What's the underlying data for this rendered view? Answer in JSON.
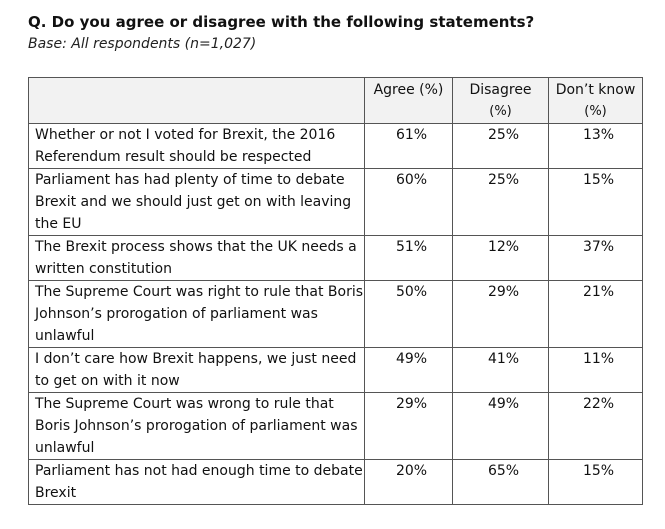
{
  "title": "Q. Do you agree or disagree with the following statements?",
  "base": "Base: All respondents (n=1,027)",
  "columns": {
    "agree": "Agree (%)",
    "disagree": "Disagree",
    "disagree_sub": "(%)",
    "dontknow": "Don’t know",
    "dontknow_sub": "(%)"
  },
  "rows": [
    {
      "statement": "Whether or not I voted for Brexit, the 2016 Referendum result should be respected",
      "agree": "61%",
      "disagree": "25%",
      "dontknow": "13%"
    },
    {
      "statement": "Parliament has had plenty of time to debate Brexit and we should just get on with leaving the EU",
      "agree": "60%",
      "disagree": "25%",
      "dontknow": "15%"
    },
    {
      "statement": "The Brexit process shows that the UK needs a written constitution",
      "agree": "51%",
      "disagree": "12%",
      "dontknow": "37%"
    },
    {
      "statement": "The Supreme Court was right to rule that Boris Johnson’s prorogation of parliament was unlawful",
      "agree": "50%",
      "disagree": "29%",
      "dontknow": "21%"
    },
    {
      "statement": "I don’t care how Brexit happens, we just need to get on with it now",
      "agree": "49%",
      "disagree": "41%",
      "dontknow": "11%"
    },
    {
      "statement": "The Supreme Court was wrong to rule that Boris Johnson’s prorogation of parliament was unlawful",
      "agree": "29%",
      "disagree": "49%",
      "dontknow": "22%"
    },
    {
      "statement": "Parliament has not had enough time to debate Brexit",
      "agree": "20%",
      "disagree": "65%",
      "dontknow": "15%"
    }
  ]
}
